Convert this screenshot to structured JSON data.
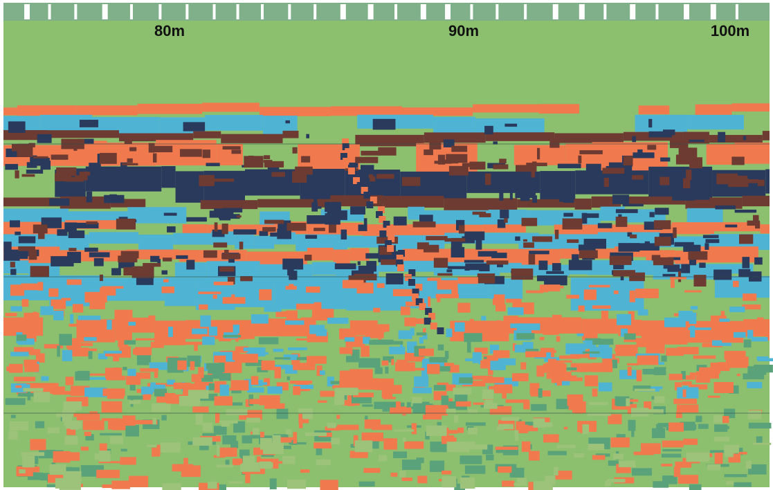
{
  "distance_labels": [
    "80m",
    "90m",
    "100m"
  ]
}
